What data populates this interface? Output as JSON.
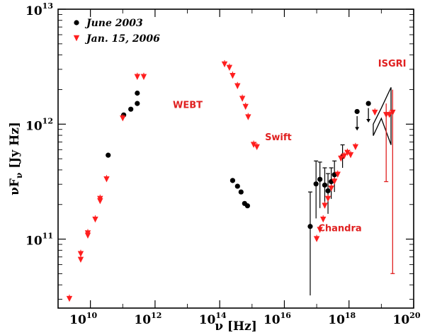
{
  "chart_data": {
    "type": "scatter",
    "title": "",
    "xlabel": "ν [Hz]",
    "ylabel": "νF_ν [Jy Hz]",
    "x_scale": "log",
    "y_scale": "log",
    "xlim_log10": [
      9,
      20
    ],
    "ylim_log10": [
      10.4,
      13
    ],
    "xticks": [
      {
        "base": "10",
        "exp": "10",
        "log": 10
      },
      {
        "base": "10",
        "exp": "12",
        "log": 12
      },
      {
        "base": "10",
        "exp": "14",
        "log": 14
      },
      {
        "base": "10",
        "exp": "16",
        "log": 16
      },
      {
        "base": "10",
        "exp": "18",
        "log": 18
      },
      {
        "base": "10",
        "exp": "20",
        "log": 20
      }
    ],
    "yticks": [
      {
        "base": "10",
        "exp": "11",
        "log": 11
      },
      {
        "base": "10",
        "exp": "12",
        "log": 12
      },
      {
        "base": "10",
        "exp": "13",
        "log": 13
      }
    ],
    "legend": {
      "position": "top-left",
      "entries": [
        {
          "label": "June 2003",
          "marker": "circle",
          "color": "#000000"
        },
        {
          "label": "Jan. 15, 2006",
          "marker": "triangle-down",
          "color": "#ff1e1e"
        }
      ]
    },
    "annotations": [
      {
        "text": "WEBT",
        "color": "#e02020",
        "at_log": [
          12.55,
          12.14
        ]
      },
      {
        "text": "Swift",
        "color": "#e02020",
        "at_log": [
          15.4,
          11.86
        ]
      },
      {
        "text": "Chandra",
        "color": "#e02020",
        "at_log": [
          17.05,
          11.07
        ]
      },
      {
        "text": "ISGRI",
        "color": "#e02020",
        "at_log": [
          18.9,
          12.5
        ]
      }
    ],
    "series": [
      {
        "name": "June 2003",
        "marker": "circle",
        "color": "#000000",
        "points_log": [
          [
            10.55,
            11.73
          ],
          [
            11.03,
            12.08
          ],
          [
            11.25,
            12.13
          ],
          [
            11.45,
            12.18
          ],
          [
            11.45,
            12.27
          ],
          [
            14.4,
            11.51
          ],
          [
            14.55,
            11.46
          ],
          [
            14.66,
            11.41
          ],
          [
            14.77,
            11.31
          ],
          [
            14.86,
            11.29
          ]
        ]
      },
      {
        "name": "June 2003 X-ray",
        "marker": "circle",
        "color": "#000000",
        "points_log": [
          [
            16.8,
            11.11,
            0.6,
            0.3
          ],
          [
            16.98,
            11.48,
            0.3,
            0.2
          ],
          [
            17.1,
            11.52,
            0.25,
            0.15
          ],
          [
            17.25,
            11.47,
            0.2,
            0.15
          ],
          [
            17.35,
            11.42,
            0.2,
            0.15
          ],
          [
            17.45,
            11.5,
            0.15,
            0.12
          ],
          [
            17.55,
            11.56,
            0.15,
            0.12
          ],
          [
            17.8,
            11.72,
            0.1,
            0.1
          ],
          [
            18.25,
            12.11,
            0.0,
            0.0
          ],
          [
            18.6,
            12.18,
            0.0,
            0.0
          ]
        ]
      },
      {
        "name": "Jan. 15, 2006",
        "marker": "triangle-down",
        "color": "#ff1e1e",
        "points_log": [
          [
            9.35,
            10.48
          ],
          [
            9.7,
            10.82
          ],
          [
            9.7,
            10.87
          ],
          [
            9.92,
            11.03
          ],
          [
            9.92,
            11.05
          ],
          [
            10.15,
            11.17
          ],
          [
            10.3,
            11.33
          ],
          [
            10.3,
            11.35
          ],
          [
            10.5,
            11.52
          ],
          [
            11.0,
            12.05
          ],
          [
            11.45,
            12.41
          ],
          [
            11.65,
            12.41
          ],
          [
            14.15,
            12.52
          ],
          [
            14.3,
            12.49
          ],
          [
            14.4,
            12.42
          ],
          [
            14.55,
            12.33
          ],
          [
            14.7,
            12.22
          ],
          [
            14.8,
            12.15
          ],
          [
            14.88,
            12.06
          ],
          [
            15.05,
            11.82
          ],
          [
            15.15,
            11.8
          ],
          [
            17.0,
            11.0
          ],
          [
            17.1,
            11.08
          ],
          [
            17.2,
            11.17
          ],
          [
            17.25,
            11.29
          ],
          [
            17.35,
            11.35
          ],
          [
            17.45,
            11.44
          ],
          [
            17.55,
            11.5
          ],
          [
            17.65,
            11.56
          ],
          [
            17.75,
            11.7
          ],
          [
            17.85,
            11.72
          ],
          [
            17.95,
            11.75
          ],
          [
            18.05,
            11.73
          ],
          [
            18.2,
            11.8
          ],
          [
            18.8,
            12.1
          ],
          [
            19.15,
            12.08
          ],
          [
            19.25,
            12.08
          ],
          [
            19.35,
            12.1
          ]
        ]
      }
    ],
    "isgri_band": {
      "color": "#000000",
      "points_log": [
        [
          18.75,
          12.0
        ],
        [
          19.0,
          12.14
        ],
        [
          19.3,
          12.32
        ],
        [
          19.3,
          11.82
        ],
        [
          19.0,
          12.05
        ],
        [
          18.75,
          11.9
        ]
      ]
    },
    "isgri_errorbars": [
      [
        19.15,
        12.08,
        12.18,
        11.5
      ],
      [
        19.35,
        12.1,
        12.3,
        10.7
      ]
    ],
    "upper_limits": [
      [
        18.25,
        11.95
      ],
      [
        18.6,
        12.02
      ]
    ]
  }
}
